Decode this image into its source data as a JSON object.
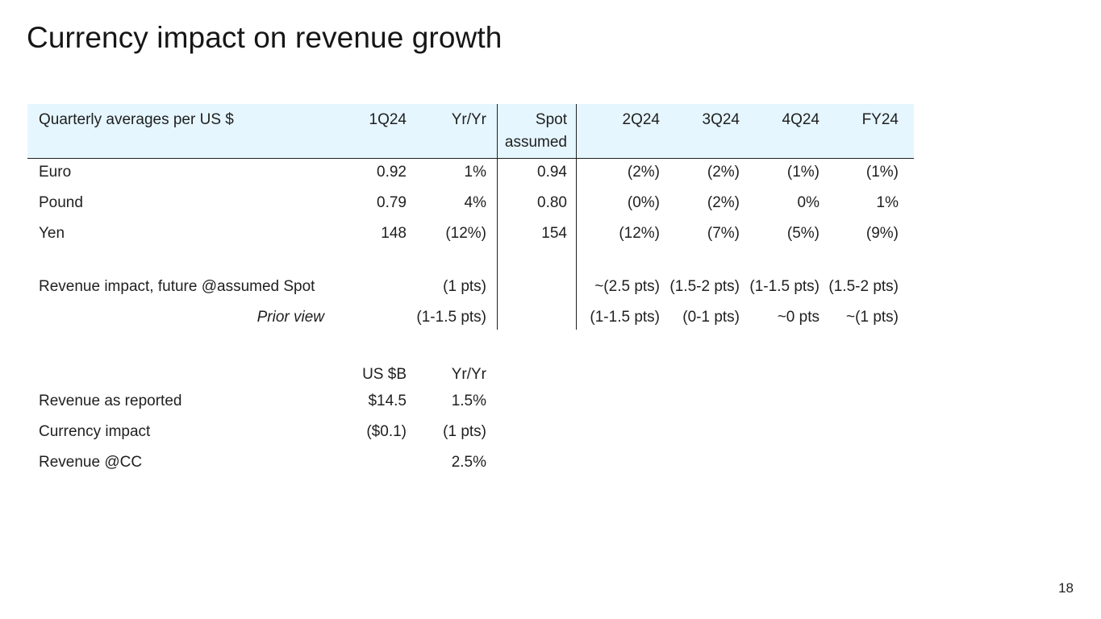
{
  "title": "Currency impact on revenue growth",
  "page_number": "18",
  "fx_table": {
    "header": {
      "label": "Quarterly averages per US $",
      "q1": "1Q24",
      "yy": "Yr/Yr",
      "spot_line1": "Spot",
      "spot_line2": "assumed",
      "q2": "2Q24",
      "q3": "3Q24",
      "q4": "4Q24",
      "fy": "FY24"
    },
    "rows": [
      {
        "label": "Euro",
        "q1": "0.92",
        "yy": "1%",
        "spot": "0.94",
        "q2": "(2%)",
        "q3": "(2%)",
        "q4": "(1%)",
        "fy": "(1%)"
      },
      {
        "label": "Pound",
        "q1": "0.79",
        "yy": "4%",
        "spot": "0.80",
        "q2": "(0%)",
        "q3": "(2%)",
        "q4": "0%",
        "fy": "1%"
      },
      {
        "label": "Yen",
        "q1": "148",
        "yy": "(12%)",
        "spot": "154",
        "q2": "(12%)",
        "q3": "(7%)",
        "q4": "(5%)",
        "fy": "(9%)"
      }
    ],
    "impact": {
      "label": "Revenue impact, future @assumed Spot",
      "yy": "(1 pts)",
      "q2": "~(2.5 pts)",
      "q3": "(1.5-2 pts)",
      "q4": "(1-1.5 pts)",
      "fy": "(1.5-2 pts)"
    },
    "prior": {
      "label": "Prior view",
      "yy": "(1-1.5 pts)",
      "q2": "(1-1.5 pts)",
      "q3": "(0-1 pts)",
      "q4": "~0 pts",
      "fy": "~(1 pts)"
    }
  },
  "rev_table": {
    "header": {
      "usb": "US $B",
      "yy": "Yr/Yr"
    },
    "rows": [
      {
        "label": "Revenue as reported",
        "usb": "$14.5",
        "yy": "1.5%"
      },
      {
        "label": "Currency impact",
        "usb": "($0.1)",
        "yy": "(1 pts)"
      },
      {
        "label": "Revenue @CC",
        "usb": "",
        "yy": "2.5%"
      }
    ]
  }
}
